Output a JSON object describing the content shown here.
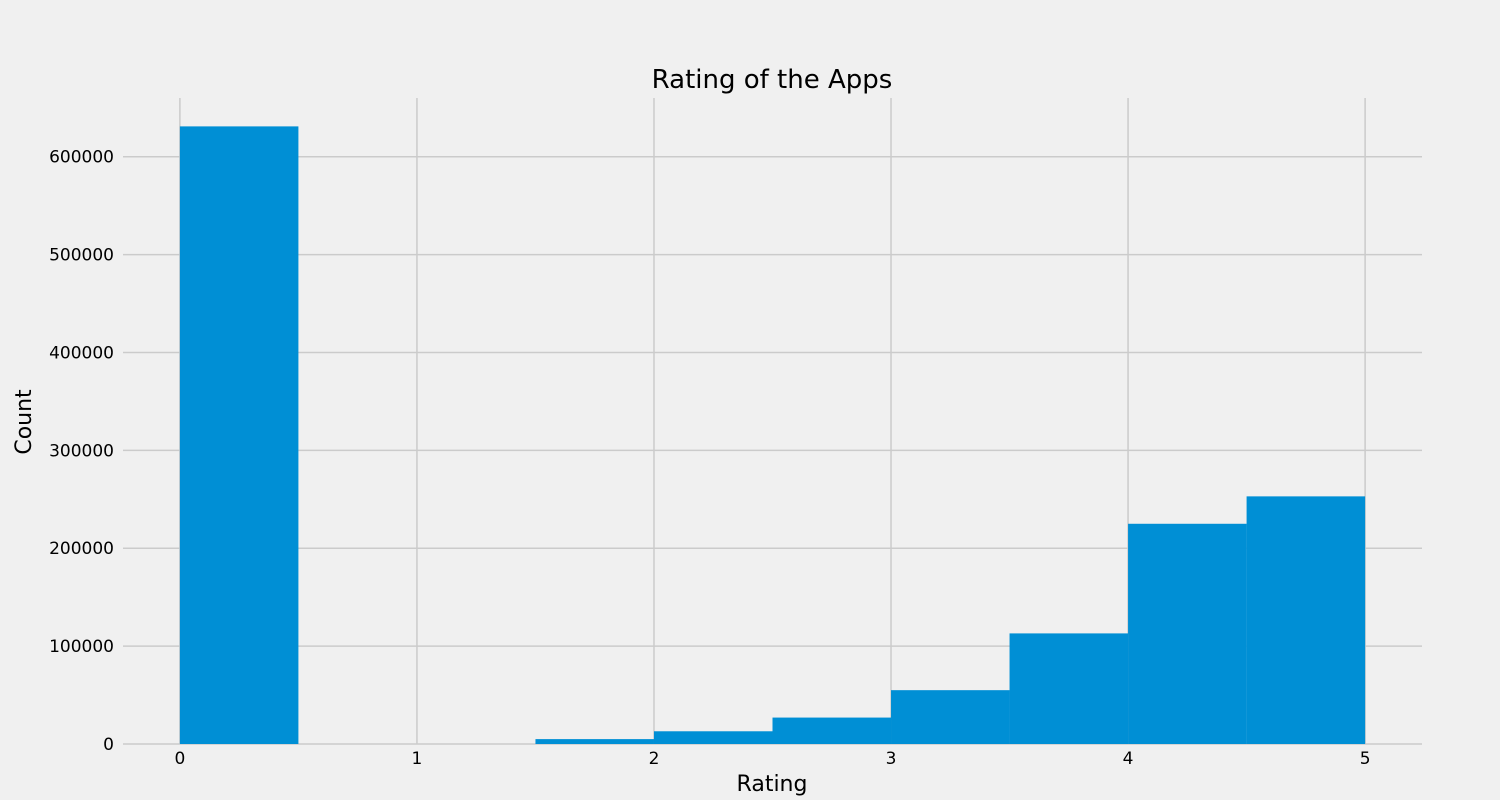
{
  "chart_data": {
    "type": "bar",
    "title": "Rating of the Apps",
    "xlabel": "Rating",
    "ylabel": "Count",
    "xlim": [
      -0.24,
      5.24
    ],
    "ylim": [
      0,
      660000
    ],
    "xticks": [
      0,
      1,
      2,
      3,
      4,
      5
    ],
    "yticks": [
      0,
      100000,
      200000,
      300000,
      400000,
      500000,
      600000
    ],
    "grid": true,
    "bin_edges": [
      0,
      0.5,
      1,
      1.5,
      2,
      2.5,
      3,
      3.5,
      4,
      4.5,
      5
    ],
    "values": [
      631000,
      0,
      0,
      5000,
      13000,
      27000,
      55000,
      113000,
      225000,
      253000
    ],
    "colors": {
      "bar": "#008fd5",
      "background": "#f0f0f0",
      "grid": "#cbcbcb"
    }
  }
}
